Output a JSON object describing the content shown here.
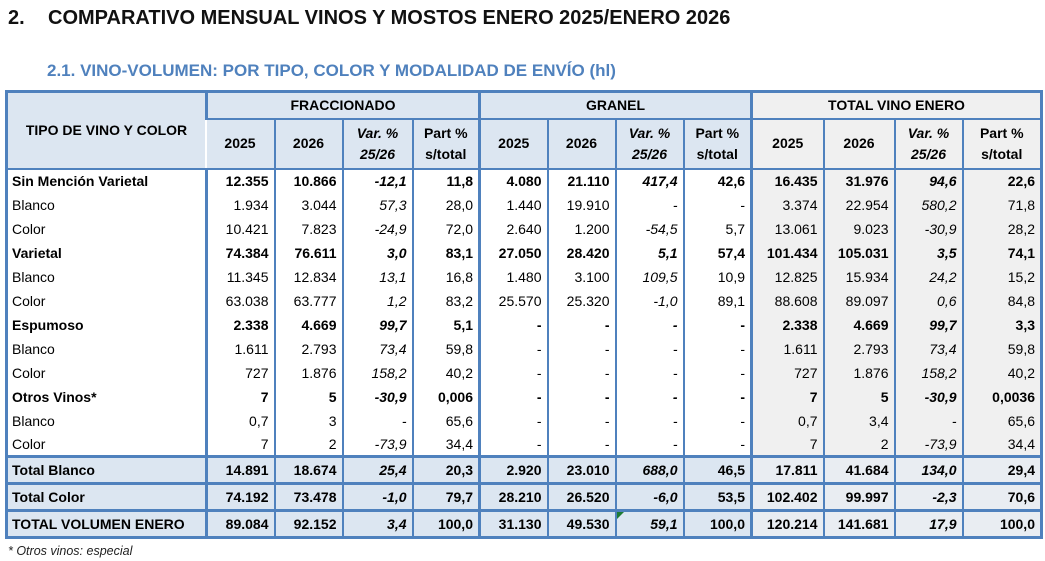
{
  "heading": {
    "number": "2.",
    "title": "COMPARATIVO MENSUAL VINOS Y MOSTOS ENERO 2025/ENERO 2026"
  },
  "subheading": "2.1. VINO-VOLUMEN: POR TIPO, COLOR Y MODALIDAD DE ENVÍO (hl)",
  "footnote": "* Otros vinos: especial",
  "colors": {
    "border_blue": "#4f81bd",
    "header_blue_bg": "#dce6f1",
    "header_gray_bg": "#f0f0f0",
    "subtitle_blue": "#4f81bd",
    "flag_green": "#1e7b34"
  },
  "table": {
    "corner_header": "TIPO DE VINO Y COLOR",
    "groups": [
      {
        "id": "fraccionado",
        "label": "FRACCIONADO",
        "theme": "blue"
      },
      {
        "id": "granel",
        "label": "GRANEL",
        "theme": "blue"
      },
      {
        "id": "total",
        "label": "TOTAL VINO ENERO",
        "theme": "gray"
      }
    ],
    "sub_columns": [
      {
        "lines": [
          "2025"
        ],
        "italic": false
      },
      {
        "lines": [
          "2026"
        ],
        "italic": false
      },
      {
        "lines": [
          "Var. %",
          "25/26"
        ],
        "italic": true
      },
      {
        "lines": [
          "Part %",
          "s/total"
        ],
        "italic": false
      }
    ],
    "rows": [
      {
        "label": "Sin Mención Varietal",
        "kind": "section",
        "fraccionado": [
          "12.355",
          "10.866",
          "-12,1",
          "11,8"
        ],
        "granel": [
          "4.080",
          "21.110",
          "417,4",
          "42,6"
        ],
        "total": [
          "16.435",
          "31.976",
          "94,6",
          "22,6"
        ]
      },
      {
        "label": "Blanco",
        "kind": "detail",
        "fraccionado": [
          "1.934",
          "3.044",
          "57,3",
          "28,0"
        ],
        "granel": [
          "1.440",
          "19.910",
          "-",
          "-"
        ],
        "total": [
          "3.374",
          "22.954",
          "580,2",
          "71,8"
        ]
      },
      {
        "label": "Color",
        "kind": "detail",
        "fraccionado": [
          "10.421",
          "7.823",
          "-24,9",
          "72,0"
        ],
        "granel": [
          "2.640",
          "1.200",
          "-54,5",
          "5,7"
        ],
        "total": [
          "13.061",
          "9.023",
          "-30,9",
          "28,2"
        ]
      },
      {
        "label": "Varietal",
        "kind": "section",
        "fraccionado": [
          "74.384",
          "76.611",
          "3,0",
          "83,1"
        ],
        "granel": [
          "27.050",
          "28.420",
          "5,1",
          "57,4"
        ],
        "total": [
          "101.434",
          "105.031",
          "3,5",
          "74,1"
        ]
      },
      {
        "label": "Blanco",
        "kind": "detail",
        "fraccionado": [
          "11.345",
          "12.834",
          "13,1",
          "16,8"
        ],
        "granel": [
          "1.480",
          "3.100",
          "109,5",
          "10,9"
        ],
        "total": [
          "12.825",
          "15.934",
          "24,2",
          "15,2"
        ]
      },
      {
        "label": "Color",
        "kind": "detail",
        "fraccionado": [
          "63.038",
          "63.777",
          "1,2",
          "83,2"
        ],
        "granel": [
          "25.570",
          "25.320",
          "-1,0",
          "89,1"
        ],
        "total": [
          "88.608",
          "89.097",
          "0,6",
          "84,8"
        ]
      },
      {
        "label": "Espumoso",
        "kind": "section",
        "fraccionado": [
          "2.338",
          "4.669",
          "99,7",
          "5,1"
        ],
        "granel": [
          "-",
          "-",
          "-",
          "-"
        ],
        "total": [
          "2.338",
          "4.669",
          "99,7",
          "3,3"
        ]
      },
      {
        "label": "Blanco",
        "kind": "detail",
        "fraccionado": [
          "1.611",
          "2.793",
          "73,4",
          "59,8"
        ],
        "granel": [
          "-",
          "-",
          "-",
          "-"
        ],
        "total": [
          "1.611",
          "2.793",
          "73,4",
          "59,8"
        ]
      },
      {
        "label": "Color",
        "kind": "detail",
        "fraccionado": [
          "727",
          "1.876",
          "158,2",
          "40,2"
        ],
        "granel": [
          "-",
          "-",
          "-",
          "-"
        ],
        "total": [
          "727",
          "1.876",
          "158,2",
          "40,2"
        ]
      },
      {
        "label": "Otros Vinos*",
        "kind": "section",
        "fraccionado": [
          "7",
          "5",
          "-30,9",
          "0,006"
        ],
        "granel": [
          "-",
          "-",
          "-",
          "-"
        ],
        "total": [
          "7",
          "5",
          "-30,9",
          "0,0036"
        ]
      },
      {
        "label": "Blanco",
        "kind": "detail",
        "fraccionado": [
          "0,7",
          "3",
          "-",
          "65,6"
        ],
        "granel": [
          "-",
          "-",
          "-",
          "-"
        ],
        "total": [
          "0,7",
          "3,4",
          "-",
          "65,6"
        ]
      },
      {
        "label": "Color",
        "kind": "detail",
        "fraccionado": [
          "7",
          "2",
          "-73,9",
          "34,4"
        ],
        "granel": [
          "-",
          "-",
          "-",
          "-"
        ],
        "total": [
          "7",
          "2",
          "-73,9",
          "34,4"
        ]
      },
      {
        "label": "Total Blanco",
        "kind": "total",
        "fraccionado": [
          "14.891",
          "18.674",
          "25,4",
          "20,3"
        ],
        "granel": [
          "2.920",
          "23.010",
          "688,0",
          "46,5"
        ],
        "total": [
          "17.811",
          "41.684",
          "134,0",
          "29,4"
        ]
      },
      {
        "label": "Total Color",
        "kind": "total",
        "fraccionado": [
          "74.192",
          "73.478",
          "-1,0",
          "79,7"
        ],
        "granel": [
          "28.210",
          "26.520",
          "-6,0",
          "53,5"
        ],
        "total": [
          "102.402",
          "99.997",
          "-2,3",
          "70,6"
        ]
      },
      {
        "label": "TOTAL VOLUMEN ENERO",
        "kind": "grand",
        "flag": {
          "group": "granel",
          "col": 2
        },
        "fraccionado": [
          "89.084",
          "92.152",
          "3,4",
          "100,0"
        ],
        "granel": [
          "31.130",
          "49.530",
          "59,1",
          "100,0"
        ],
        "total": [
          "120.214",
          "141.681",
          "17,9",
          "100,0"
        ]
      }
    ]
  }
}
